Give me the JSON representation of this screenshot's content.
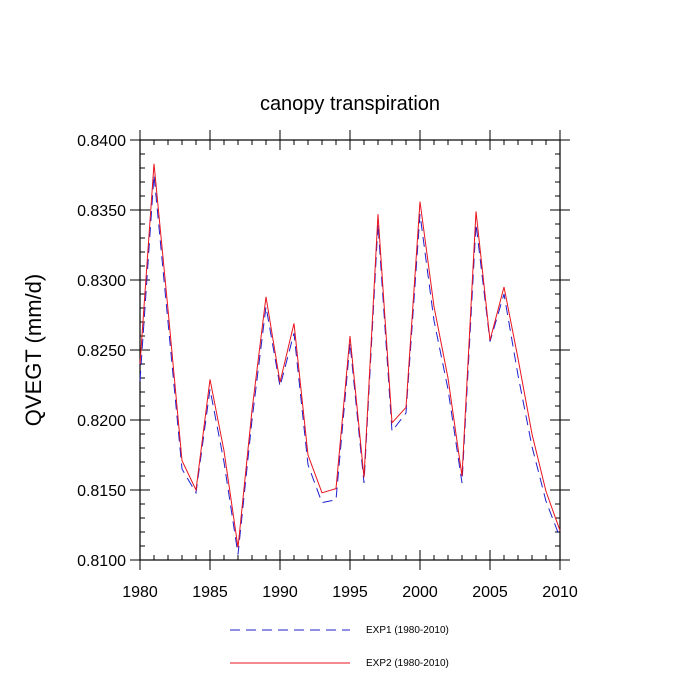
{
  "chart_data": {
    "type": "line",
    "title": "canopy transpiration",
    "xlabel": "",
    "ylabel": "QVEGT  (mm/d)",
    "xlim": [
      1980,
      2010
    ],
    "ylim": [
      0.81,
      0.84
    ],
    "x_ticks": [
      1980,
      1985,
      1990,
      1995,
      2000,
      2005,
      2010
    ],
    "x_tick_labels": [
      "1980",
      "1985",
      "1990",
      "1995",
      "2000",
      "2005",
      "2010"
    ],
    "y_ticks": [
      0.81,
      0.815,
      0.82,
      0.825,
      0.83,
      0.835,
      0.84
    ],
    "y_tick_labels": [
      "0.8100",
      "0.8150",
      "0.8200",
      "0.8250",
      "0.8300",
      "0.8350",
      "0.8400"
    ],
    "legend_position": "bottom",
    "grid": false,
    "x": [
      1980,
      1981,
      1982,
      1983,
      1984,
      1985,
      1986,
      1987,
      1988,
      1989,
      1990,
      1991,
      1992,
      1993,
      1994,
      1995,
      1996,
      1997,
      1998,
      1999,
      2000,
      2001,
      2002,
      2003,
      2004,
      2005,
      2006,
      2007,
      2008,
      2009,
      2010
    ],
    "series": [
      {
        "name": "EXP1 (1980-2010)",
        "color": "#1f1fcf",
        "style": "dashed",
        "values": [
          0.8228,
          0.8375,
          0.827,
          0.8165,
          0.8148,
          0.8222,
          0.817,
          0.8104,
          0.82,
          0.8281,
          0.8224,
          0.8262,
          0.8168,
          0.8141,
          0.8143,
          0.8255,
          0.8155,
          0.834,
          0.8192,
          0.8205,
          0.8347,
          0.8271,
          0.8222,
          0.8155,
          0.834,
          0.8256,
          0.829,
          0.8232,
          0.8181,
          0.8142,
          0.8116
        ]
      },
      {
        "name": "EXP2 (1980-2010)",
        "color": "#e8141e",
        "style": "solid",
        "values": [
          0.824,
          0.8383,
          0.8279,
          0.8171,
          0.815,
          0.8229,
          0.8178,
          0.8109,
          0.8207,
          0.8288,
          0.8227,
          0.8269,
          0.8175,
          0.8148,
          0.8151,
          0.826,
          0.8159,
          0.8347,
          0.8198,
          0.8209,
          0.8356,
          0.8281,
          0.823,
          0.816,
          0.8349,
          0.8257,
          0.8295,
          0.8244,
          0.819,
          0.8149,
          0.8121
        ]
      }
    ]
  }
}
